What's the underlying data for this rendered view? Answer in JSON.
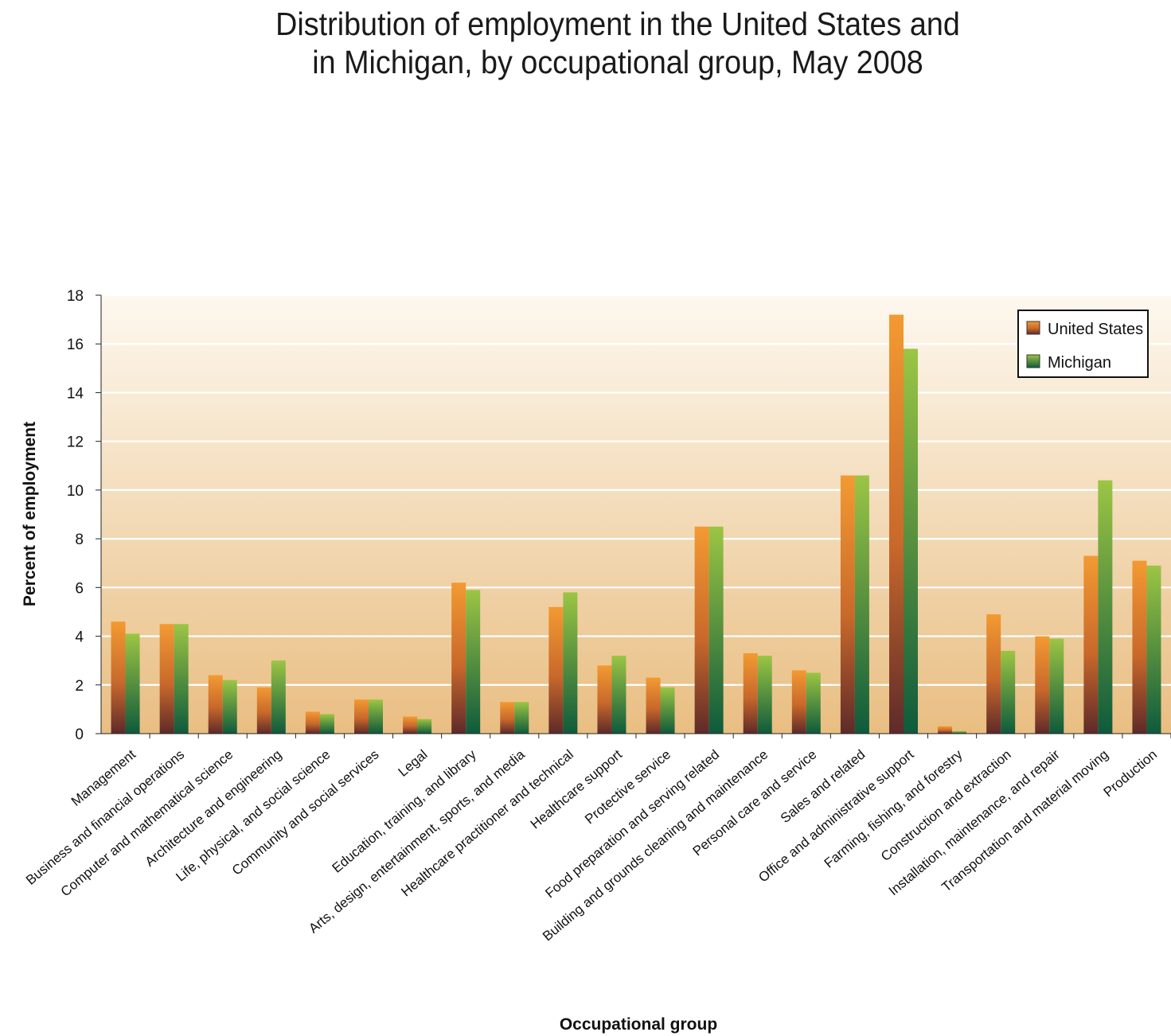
{
  "chart_data": {
    "type": "bar",
    "title_lines": [
      "Distribution of employment in the United States and",
      "in Michigan, by occupational group, May 2008"
    ],
    "xlabel": "Occupational group",
    "ylabel": "Percent of employment",
    "ylim": [
      0,
      18
    ],
    "yticks": [
      "0",
      "2",
      "4",
      "6",
      "8",
      "10",
      "12",
      "14",
      "16",
      "18"
    ],
    "grid": true,
    "legend_position": "top-right",
    "categories": [
      "Management",
      "Business and financial operations",
      "Computer and mathematical science",
      "Architecture and engineering",
      "Life, physical, and social science",
      "Community and social services",
      "Legal",
      "Education, training, and library",
      "Arts, design, entertainment, sports, and media",
      "Healthcare practitioner and technical",
      "Healthcare support",
      "Protective service",
      "Food preparation and serving related",
      "Building and grounds cleaning and maintenance",
      "Personal care and service",
      "Sales and related",
      "Office and administrative support",
      "Farming, fishing, and forestry",
      "Construction and extraction",
      "Installation, maintenance, and repair",
      "Transportation and material moving",
      "Production"
    ],
    "series": [
      {
        "name": "United States",
        "color_top": "#f39a32",
        "color_bottom": "#5e2a2a",
        "values": [
          4.6,
          4.5,
          2.4,
          1.9,
          0.9,
          1.4,
          0.7,
          6.2,
          1.3,
          5.2,
          2.8,
          2.3,
          8.5,
          3.3,
          2.6,
          10.6,
          17.2,
          0.3,
          4.9,
          4.0,
          7.3,
          7.1
        ]
      },
      {
        "name": "Michigan",
        "color_top": "#9cc544",
        "color_bottom": "#0e5a3c",
        "values": [
          4.1,
          4.5,
          2.2,
          3.0,
          0.8,
          1.4,
          0.6,
          5.9,
          1.3,
          5.8,
          3.2,
          1.9,
          8.5,
          3.2,
          2.5,
          10.6,
          15.8,
          0.1,
          3.4,
          3.9,
          10.4,
          6.9
        ]
      }
    ]
  }
}
